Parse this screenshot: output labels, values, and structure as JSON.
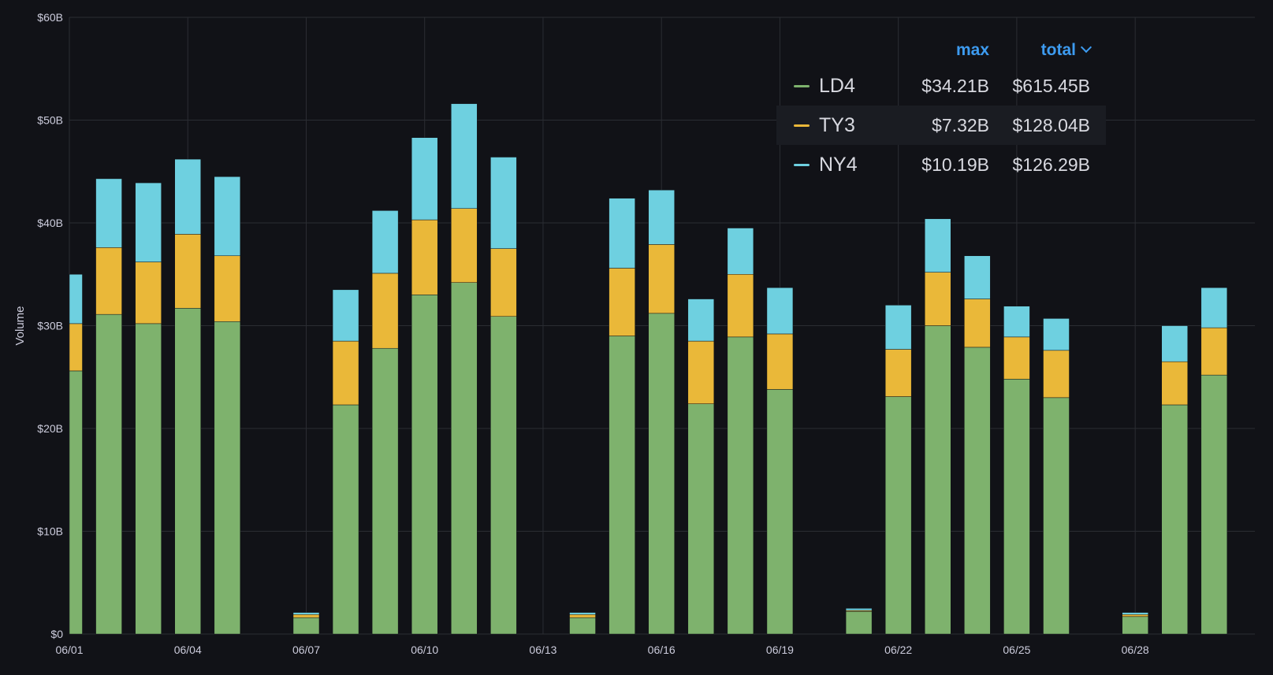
{
  "chart_data": {
    "type": "bar",
    "stacked": true,
    "ylabel": "Volume",
    "ylim": [
      0,
      60
    ],
    "y_unit": "B",
    "y_ticks": [
      "$0",
      "$10B",
      "$20B",
      "$30B",
      "$40B",
      "$50B",
      "$60B"
    ],
    "x_ticks": [
      "06/01",
      "06/04",
      "06/07",
      "06/10",
      "06/13",
      "06/16",
      "06/19",
      "06/22",
      "06/25",
      "06/28"
    ],
    "grid": true,
    "legend_position": "top-right",
    "series": [
      {
        "name": "LD4",
        "color": "#7eb26d",
        "values": [
          25.6,
          31.1,
          30.2,
          31.7,
          30.4,
          0,
          1.6,
          22.3,
          27.8,
          33.0,
          34.2,
          30.9,
          0,
          1.6,
          29.0,
          31.2,
          22.4,
          28.9,
          23.8,
          0,
          2.2,
          23.1,
          30.0,
          27.9,
          24.8,
          23.0,
          0,
          1.7,
          22.3,
          25.2
        ]
      },
      {
        "name": "TY3",
        "color": "#eab839",
        "values": [
          4.6,
          6.5,
          6.0,
          7.2,
          6.4,
          0,
          0.3,
          6.2,
          7.3,
          7.3,
          7.2,
          6.6,
          0,
          0.3,
          6.6,
          6.7,
          6.1,
          6.1,
          5.4,
          0,
          0.1,
          4.6,
          5.2,
          4.7,
          4.1,
          4.6,
          0,
          0.2,
          4.2,
          4.6
        ]
      },
      {
        "name": "NY4",
        "color": "#6ed0e0",
        "values": [
          4.8,
          6.7,
          7.7,
          7.3,
          7.7,
          0,
          0.2,
          5.0,
          6.1,
          8.0,
          10.2,
          8.9,
          0,
          0.2,
          6.8,
          5.3,
          4.1,
          4.5,
          4.5,
          0,
          0.2,
          4.3,
          5.2,
          4.2,
          3.0,
          3.1,
          0,
          0.2,
          3.5,
          3.9
        ]
      }
    ]
  },
  "legend": {
    "headers": {
      "max": "max",
      "total": "total"
    },
    "rows": [
      {
        "name": "LD4",
        "max": "$34.21B",
        "total": "$615.45B",
        "color": "#7eb26d"
      },
      {
        "name": "TY3",
        "max": "$7.32B",
        "total": "$128.04B",
        "color": "#eab839"
      },
      {
        "name": "NY4",
        "max": "$10.19B",
        "total": "$126.29B",
        "color": "#6ed0e0"
      }
    ]
  }
}
